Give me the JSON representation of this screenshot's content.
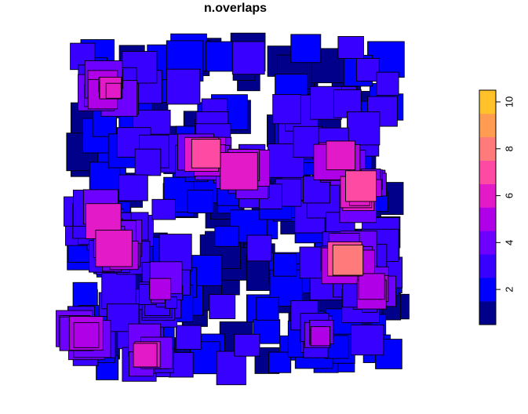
{
  "chart_data": {
    "type": "heatmap",
    "title": "n.overlaps",
    "xlabel": "",
    "ylabel": "",
    "grid": false,
    "legend_placement": "right",
    "legend": {
      "orientation": "vertical",
      "range": [
        1,
        11
      ],
      "breaks": [
        1,
        2,
        3,
        4,
        5,
        6,
        7,
        8,
        9,
        10,
        11
      ],
      "colors": [
        "#00008B",
        "#0000FF",
        "#3700FF",
        "#6E00FF",
        "#B000E8",
        "#E21AC8",
        "#FF4AA3",
        "#FF7A7A",
        "#FF9C52",
        "#FFC22B",
        "#FFFF00"
      ],
      "ticks": [
        2,
        4,
        6,
        8,
        10
      ],
      "tick_labels": [
        "2",
        "4",
        "6",
        "8",
        "10"
      ]
    },
    "border_color": "#000000",
    "hotspots": [
      {
        "x": 0.13,
        "y": 0.17,
        "max": 7
      },
      {
        "x": 0.41,
        "y": 0.35,
        "max": 7
      },
      {
        "x": 0.52,
        "y": 0.4,
        "max": 7
      },
      {
        "x": 0.79,
        "y": 0.36,
        "max": 7
      },
      {
        "x": 0.86,
        "y": 0.45,
        "max": 8
      },
      {
        "x": 0.12,
        "y": 0.53,
        "max": 7
      },
      {
        "x": 0.16,
        "y": 0.62,
        "max": 7
      },
      {
        "x": 0.82,
        "y": 0.65,
        "max": 8
      },
      {
        "x": 0.29,
        "y": 0.73,
        "max": 6
      },
      {
        "x": 0.88,
        "y": 0.74,
        "max": 6
      },
      {
        "x": 0.06,
        "y": 0.86,
        "max": 6
      },
      {
        "x": 0.24,
        "y": 0.91,
        "max": 7
      },
      {
        "x": 0.74,
        "y": 0.86,
        "max": 5
      }
    ]
  }
}
